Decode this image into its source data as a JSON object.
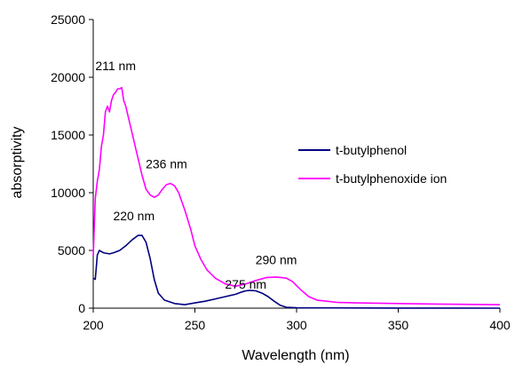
{
  "chart_data": {
    "type": "line",
    "title": "",
    "xlabel": "Wavelength (nm)",
    "ylabel": "absorptivity",
    "xlim": [
      200,
      400
    ],
    "ylim": [
      0,
      25000
    ],
    "x_ticks": [
      "200",
      "250",
      "300",
      "350",
      "400"
    ],
    "y_ticks": [
      "0",
      "5000",
      "10000",
      "15000",
      "20000",
      "25000"
    ],
    "grid": false,
    "legend_position": "right",
    "series": [
      {
        "name": "t-butylphenol",
        "color": "#000080",
        "points": [
          [
            200,
            2600
          ],
          [
            201,
            2500
          ],
          [
            202,
            4600
          ],
          [
            203,
            5000
          ],
          [
            205,
            4800
          ],
          [
            208,
            4700
          ],
          [
            210,
            4800
          ],
          [
            213,
            5000
          ],
          [
            216,
            5400
          ],
          [
            219,
            5900
          ],
          [
            222,
            6300
          ],
          [
            224,
            6300
          ],
          [
            226,
            5700
          ],
          [
            228,
            4300
          ],
          [
            230,
            2500
          ],
          [
            232,
            1300
          ],
          [
            235,
            700
          ],
          [
            240,
            400
          ],
          [
            245,
            300
          ],
          [
            250,
            450
          ],
          [
            255,
            600
          ],
          [
            260,
            800
          ],
          [
            265,
            1000
          ],
          [
            270,
            1200
          ],
          [
            273,
            1400
          ],
          [
            275,
            1500
          ],
          [
            277,
            1550
          ],
          [
            280,
            1500
          ],
          [
            283,
            1300
          ],
          [
            286,
            1000
          ],
          [
            289,
            600
          ],
          [
            292,
            250
          ],
          [
            295,
            80
          ],
          [
            300,
            30
          ],
          [
            350,
            10
          ],
          [
            400,
            0
          ]
        ]
      },
      {
        "name": "t-butylphenoxide ion",
        "color": "#ff00ff",
        "points": [
          [
            200,
            4500
          ],
          [
            201,
            9500
          ],
          [
            202,
            11000
          ],
          [
            203,
            12000
          ],
          [
            204,
            14000
          ],
          [
            205,
            15000
          ],
          [
            206,
            17000
          ],
          [
            207,
            17500
          ],
          [
            208,
            17000
          ],
          [
            209,
            18000
          ],
          [
            210,
            18500
          ],
          [
            211,
            18700
          ],
          [
            212,
            19000
          ],
          [
            213,
            19000
          ],
          [
            214,
            19100
          ],
          [
            215,
            18000
          ],
          [
            216,
            17500
          ],
          [
            218,
            16000
          ],
          [
            220,
            14500
          ],
          [
            222,
            13000
          ],
          [
            224,
            11500
          ],
          [
            226,
            10300
          ],
          [
            228,
            9800
          ],
          [
            230,
            9600
          ],
          [
            232,
            9800
          ],
          [
            234,
            10300
          ],
          [
            236,
            10700
          ],
          [
            238,
            10800
          ],
          [
            240,
            10600
          ],
          [
            242,
            10000
          ],
          [
            245,
            8500
          ],
          [
            248,
            6800
          ],
          [
            250,
            5400
          ],
          [
            253,
            4200
          ],
          [
            256,
            3300
          ],
          [
            260,
            2600
          ],
          [
            265,
            2100
          ],
          [
            270,
            1900
          ],
          [
            275,
            2100
          ],
          [
            280,
            2400
          ],
          [
            285,
            2650
          ],
          [
            290,
            2700
          ],
          [
            295,
            2600
          ],
          [
            298,
            2300
          ],
          [
            302,
            1600
          ],
          [
            306,
            1000
          ],
          [
            310,
            700
          ],
          [
            320,
            500
          ],
          [
            330,
            450
          ],
          [
            350,
            400
          ],
          [
            370,
            350
          ],
          [
            400,
            300
          ]
        ]
      }
    ],
    "annotations": [
      {
        "text": "211 nm",
        "x": 211,
        "y": 20600
      },
      {
        "text": "236 nm",
        "x": 236,
        "y": 12100
      },
      {
        "text": "220 nm",
        "x": 220,
        "y": 7600
      },
      {
        "text": "290 nm",
        "x": 290,
        "y": 3800
      },
      {
        "text": "275 nm",
        "x": 275,
        "y": 1700
      }
    ]
  }
}
